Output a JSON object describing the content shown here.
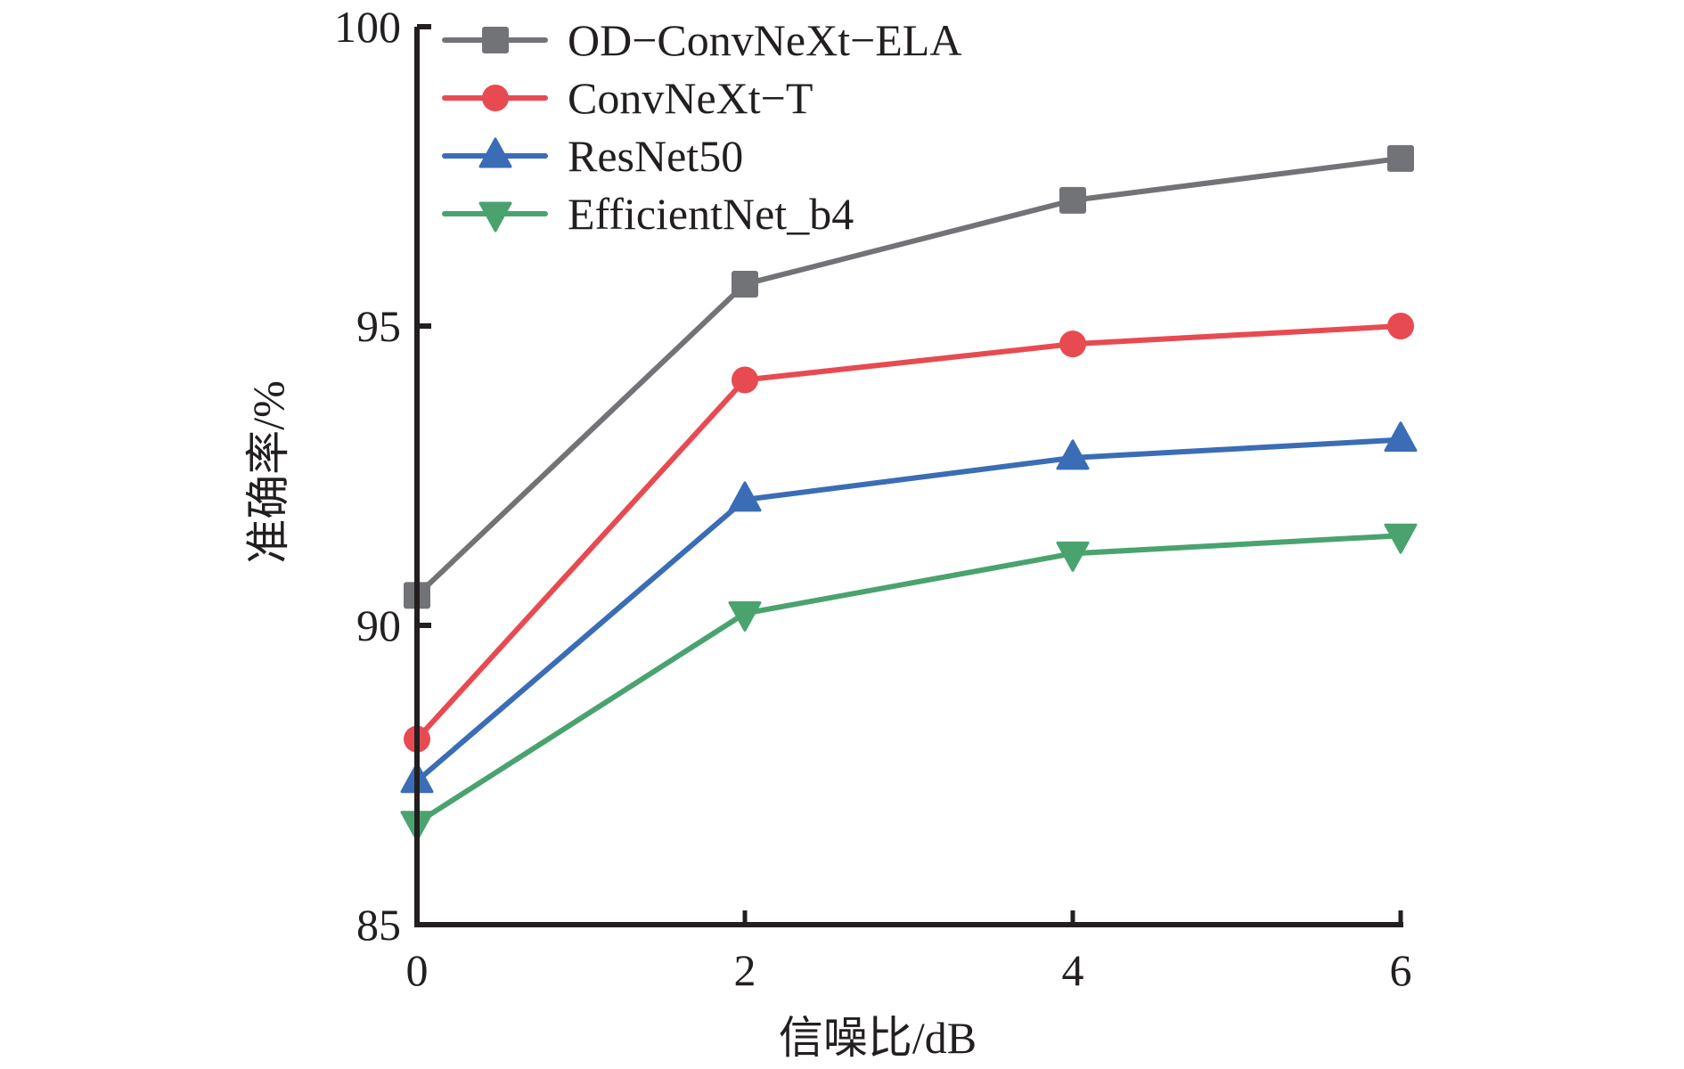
{
  "chart_data": {
    "type": "line",
    "title": "",
    "xlabel": "信噪比/dB",
    "ylabel": "准确率/%",
    "x": [
      0,
      2,
      4,
      6
    ],
    "xticks": [
      "0",
      "2",
      "4",
      "6"
    ],
    "yticks": [
      "85",
      "90",
      "95",
      "100"
    ],
    "xlim": [
      0,
      6
    ],
    "ylim": [
      85,
      100
    ],
    "grid": false,
    "legend_position": "top-left",
    "series": [
      {
        "name": "OD−ConvNeXt−ELA",
        "color": "#727377",
        "marker": "square",
        "values": [
          90.5,
          95.7,
          97.1,
          97.8
        ]
      },
      {
        "name": "ConvNeXt−T",
        "color": "#e84a51",
        "marker": "circle",
        "values": [
          88.1,
          94.1,
          94.7,
          95.0
        ]
      },
      {
        "name": "ResNet50",
        "color": "#3a6db5",
        "marker": "triangle-up",
        "values": [
          87.4,
          92.1,
          92.8,
          93.1
        ]
      },
      {
        "name": "EfficientNet_b4",
        "color": "#4aa36f",
        "marker": "triangle-down",
        "values": [
          86.7,
          90.2,
          91.2,
          91.5
        ]
      }
    ]
  }
}
